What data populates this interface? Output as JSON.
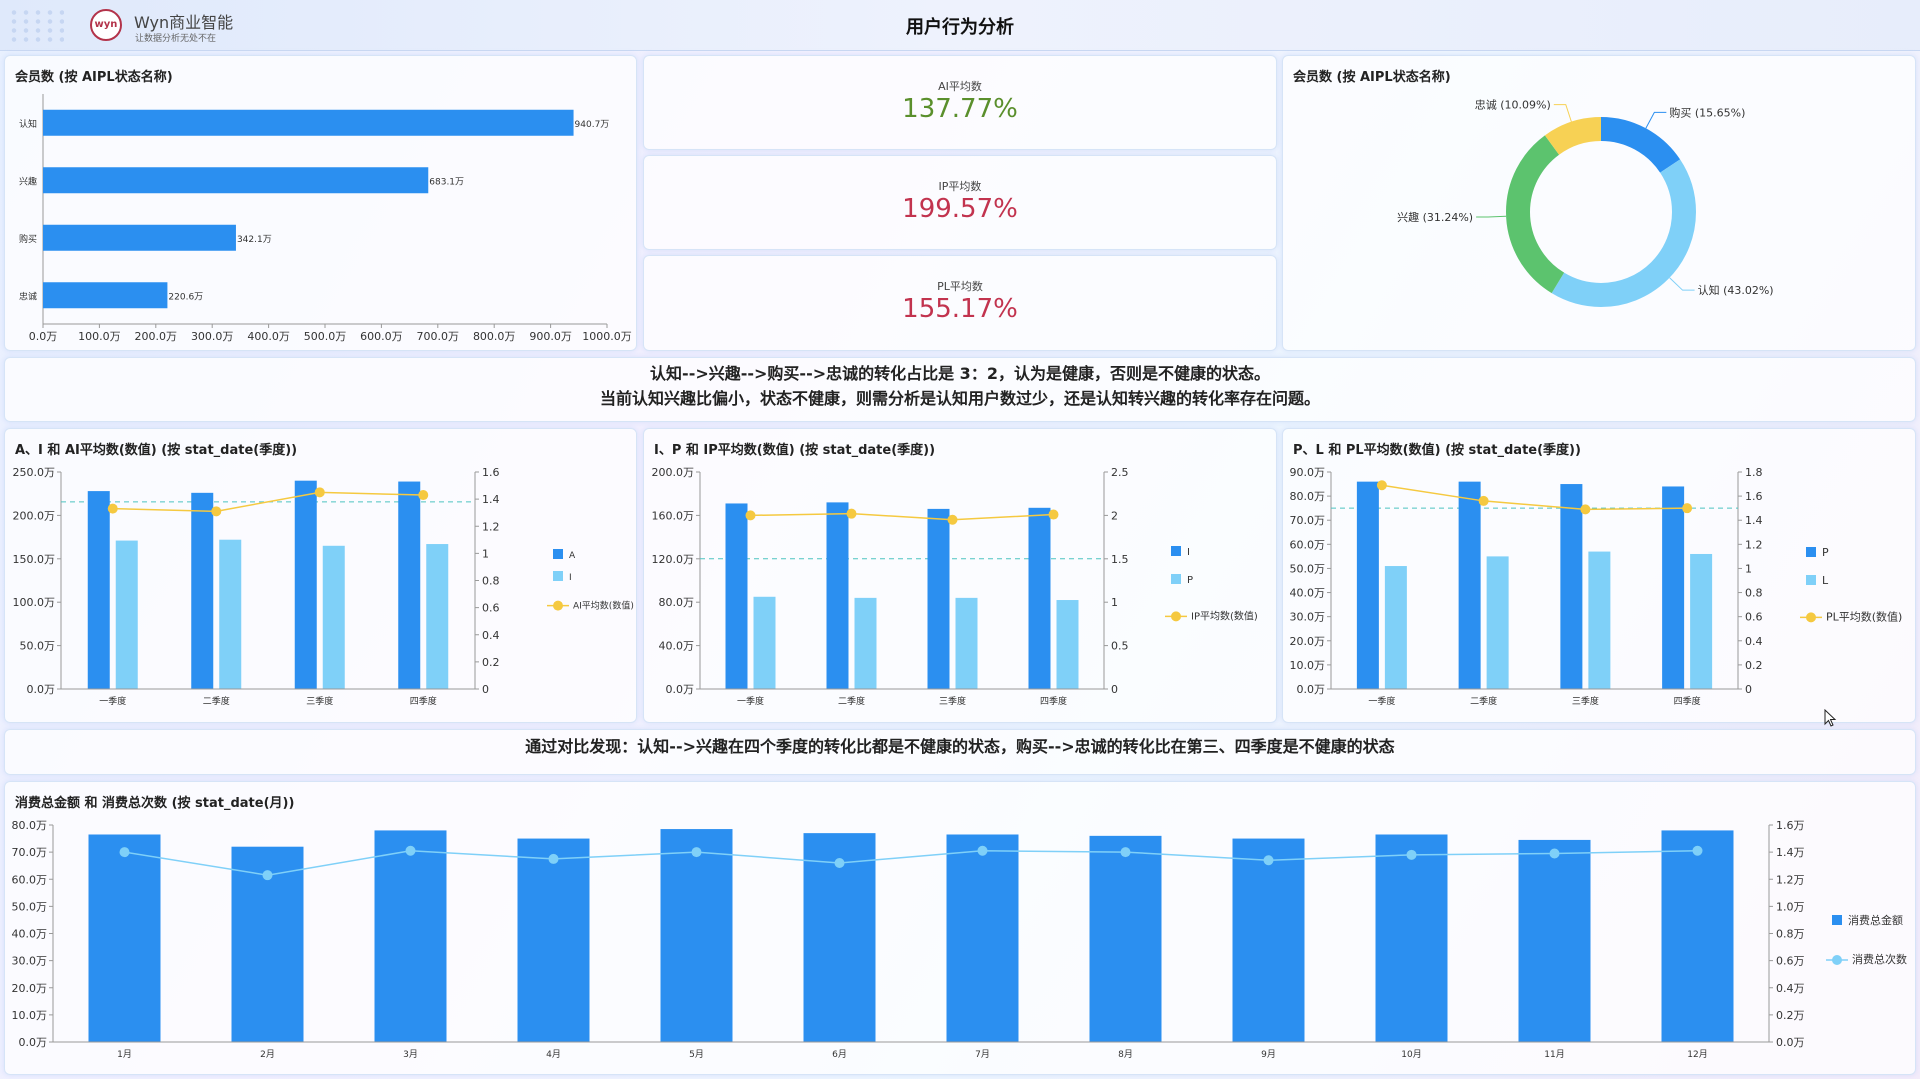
{
  "header": {
    "brand_name": "Wyn商业智能",
    "brand_slogan": "让数据分析无处不在",
    "logo_text": "wyn",
    "title": "用户行为分析"
  },
  "kpis": [
    {
      "label": "AI平均数",
      "value": "137.77%",
      "color": "#5a8f2c"
    },
    {
      "label": "IP平均数",
      "value": "199.57%",
      "color": "#c2334e"
    },
    {
      "label": "PL平均数",
      "value": "155.17%",
      "color": "#c2334e"
    }
  ],
  "notes": {
    "note1_line1": "认知-->兴趣-->购买-->忠诚的转化占比是 3：2，认为是健康，否则是不健康的状态。",
    "note1_line2": "当前认知兴趣比偏小，状态不健康，则需分析是认知用户数过少，还是认知转兴趣的转化率存在问题。",
    "note2": "通过对比发现：认知-->兴趣在四个季度的转化比都是不健康的状态，购买-->忠诚的转化比在第三、四季度是不健康的状态"
  },
  "colors": {
    "dark_bar": "#2b8ff0",
    "light_bar": "#7fd0f8",
    "line_yellow": "#f5c940",
    "donut": [
      "#2b8ff0",
      "#7fd0f8",
      "#5cc36e",
      "#f7d154"
    ]
  },
  "chart_data": [
    {
      "type": "bar",
      "title": "会员数 (按 AIPL状态名称)",
      "orientation": "horizontal",
      "categories": [
        "认知",
        "兴趣",
        "购买",
        "忠诚"
      ],
      "values": [
        940.7,
        683.1,
        342.1,
        220.6
      ],
      "value_labels": [
        "940.7万",
        "683.1万",
        "342.1万",
        "220.6万"
      ],
      "xlim": [
        0,
        1000
      ],
      "x_ticks": [
        "0.0万",
        "100.0万",
        "200.0万",
        "300.0万",
        "400.0万",
        "500.0万",
        "600.0万",
        "700.0万",
        "800.0万",
        "900.0万",
        "1000.0万"
      ]
    },
    {
      "type": "pie",
      "title": "会员数 (按 AIPL状态名称)",
      "labels": [
        "购买 (15.65%)",
        "认知 (43.02%)",
        "兴趣 (31.24%)",
        "忠诚 (10.09%)"
      ],
      "values": [
        15.65,
        43.02,
        31.24,
        10.09
      ]
    },
    {
      "type": "bar",
      "title": "A、I 和 AI平均数(数值) (按 stat_date(季度))",
      "categories": [
        "一季度",
        "二季度",
        "三季度",
        "四季度"
      ],
      "series": [
        {
          "name": "A",
          "values": [
            228,
            226,
            240,
            239
          ]
        },
        {
          "name": "I",
          "values": [
            171,
            172,
            165,
            167
          ]
        },
        {
          "name": "AI平均数(数值)",
          "values": [
            1.33,
            1.31,
            1.45,
            1.43
          ],
          "axis": "right"
        }
      ],
      "ylim": [
        0,
        250
      ],
      "y2lim": [
        0,
        1.6
      ],
      "reference_y2": 1.38,
      "y_ticks": [
        "0.0万",
        "50.0万",
        "100.0万",
        "150.0万",
        "200.0万",
        "250.0万"
      ],
      "y2_ticks": [
        "0",
        "0.2",
        "0.4",
        "0.6",
        "0.8",
        "1",
        "1.2",
        "1.4",
        "1.6"
      ]
    },
    {
      "type": "bar",
      "title": "I、P 和 IP平均数(数值) (按 stat_date(季度))",
      "categories": [
        "一季度",
        "二季度",
        "三季度",
        "四季度"
      ],
      "series": [
        {
          "name": "I",
          "values": [
            171,
            172,
            166,
            167
          ]
        },
        {
          "name": "P",
          "values": [
            85,
            84,
            84,
            82
          ]
        },
        {
          "name": "IP平均数(数值)",
          "values": [
            2.0,
            2.02,
            1.95,
            2.01
          ],
          "axis": "right"
        }
      ],
      "ylim": [
        0,
        200
      ],
      "y2lim": [
        0,
        2.5
      ],
      "reference_y2": 1.5,
      "y_ticks": [
        "0.0万",
        "40.0万",
        "80.0万",
        "120.0万",
        "160.0万",
        "200.0万"
      ],
      "y2_ticks": [
        "0",
        "0.5",
        "1",
        "1.5",
        "2",
        "2.5"
      ]
    },
    {
      "type": "bar",
      "title": "P、L 和 PL平均数(数值) (按 stat_date(季度))",
      "categories": [
        "一季度",
        "二季度",
        "三季度",
        "四季度"
      ],
      "series": [
        {
          "name": "P",
          "values": [
            86,
            86,
            85,
            84
          ]
        },
        {
          "name": "L",
          "values": [
            51,
            55,
            57,
            56
          ]
        },
        {
          "name": "PL平均数(数值)",
          "values": [
            1.69,
            1.56,
            1.49,
            1.5
          ],
          "axis": "right"
        }
      ],
      "ylim": [
        0,
        90
      ],
      "y2lim": [
        0,
        1.8
      ],
      "reference_y2": 1.5,
      "y_ticks": [
        "0.0万",
        "10.0万",
        "20.0万",
        "30.0万",
        "40.0万",
        "50.0万",
        "60.0万",
        "70.0万",
        "80.0万",
        "90.0万"
      ],
      "y2_ticks": [
        "0",
        "0.2",
        "0.4",
        "0.6",
        "0.8",
        "1",
        "1.2",
        "1.4",
        "1.6",
        "1.8"
      ]
    },
    {
      "type": "bar",
      "title": "消费总金额 和 消费总次数 (按 stat_date(月))",
      "categories": [
        "1月",
        "2月",
        "3月",
        "4月",
        "5月",
        "6月",
        "7月",
        "8月",
        "9月",
        "10月",
        "11月",
        "12月"
      ],
      "series": [
        {
          "name": "消费总金额",
          "values": [
            76.5,
            72,
            78,
            75,
            78.5,
            77,
            76.5,
            76,
            75,
            76.5,
            74.5,
            78
          ]
        },
        {
          "name": "消费总次数",
          "values": [
            1.4,
            1.23,
            1.41,
            1.35,
            1.4,
            1.32,
            1.41,
            1.4,
            1.34,
            1.38,
            1.39,
            1.41
          ],
          "axis": "right"
        }
      ],
      "ylim": [
        0,
        80
      ],
      "y2lim": [
        0,
        1.6
      ],
      "y_ticks": [
        "0.0万",
        "10.0万",
        "20.0万",
        "30.0万",
        "40.0万",
        "50.0万",
        "60.0万",
        "70.0万",
        "80.0万"
      ],
      "y2_ticks": [
        "0.0万",
        "0.2万",
        "0.4万",
        "0.6万",
        "0.8万",
        "1.0万",
        "1.2万",
        "1.4万",
        "1.6万"
      ]
    }
  ]
}
